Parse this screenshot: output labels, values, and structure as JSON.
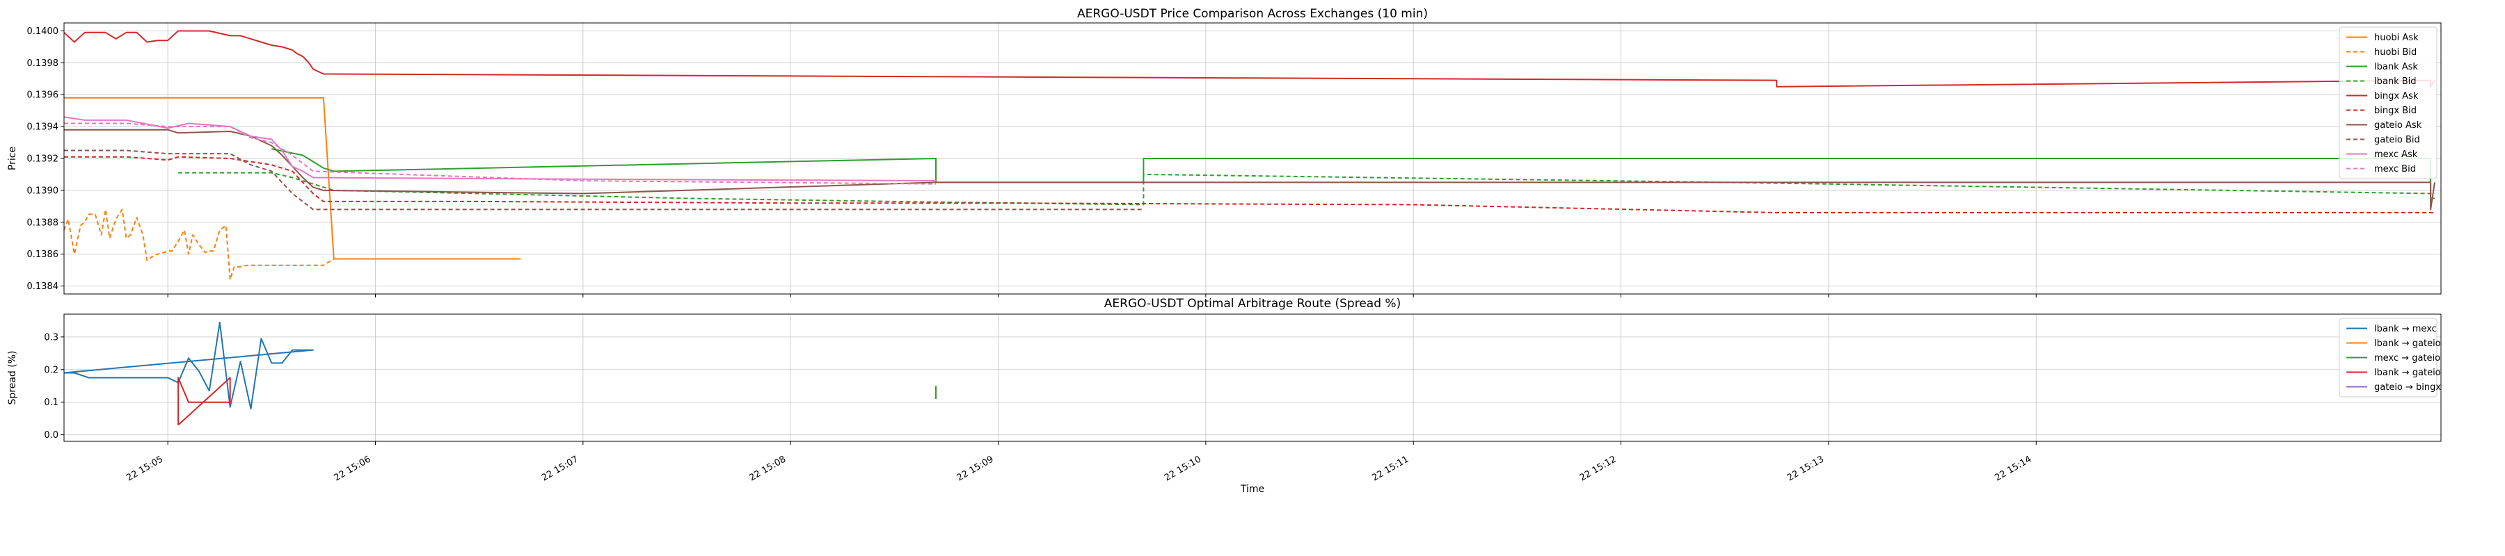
{
  "chart_data": [
    {
      "type": "line",
      "title": "AERGO-USDT Price Comparison Across Exchanges (10 min)",
      "xlabel": "",
      "ylabel": "Price",
      "ylim": [
        0.13835,
        0.14005
      ],
      "yticks": [
        "0.1384",
        "0.1386",
        "0.1388",
        "0.1390",
        "0.1392",
        "0.1394",
        "0.1396",
        "0.1398",
        "0.1400"
      ],
      "ytick_values": [
        0.1384,
        0.1386,
        0.1388,
        0.139,
        0.1392,
        0.1394,
        0.1396,
        0.1398,
        0.14
      ],
      "xlim": [
        4.5,
        15.95
      ],
      "grid": true,
      "legend_position": "top-right",
      "series": [
        {
          "name": "huobi Ask",
          "color": "#ff7f0e",
          "dash": false,
          "x": [
            4.5,
            5.0,
            5.6,
            5.75,
            5.8,
            6.7
          ],
          "y": [
            0.13958,
            0.13958,
            0.13958,
            0.13958,
            0.13857,
            0.13857
          ]
        },
        {
          "name": "huobi Bid",
          "color": "#ff7f0e",
          "dash": true,
          "x": [
            4.5,
            4.52,
            4.55,
            4.58,
            4.6,
            4.62,
            4.65,
            4.68,
            4.7,
            4.72,
            4.75,
            4.78,
            4.8,
            4.82,
            4.85,
            4.88,
            4.9,
            4.92,
            4.95,
            4.98,
            5.0,
            5.02,
            5.05,
            5.08,
            5.1,
            5.12,
            5.15,
            5.18,
            5.2,
            5.22,
            5.25,
            5.28,
            5.3,
            5.32,
            5.35,
            5.38,
            5.4,
            5.45,
            5.5,
            5.55,
            5.6,
            5.65,
            5.7,
            5.75,
            5.8,
            6.7
          ],
          "y": [
            0.13875,
            0.13882,
            0.1386,
            0.13878,
            0.1388,
            0.13885,
            0.13885,
            0.13872,
            0.13888,
            0.1387,
            0.13882,
            0.13888,
            0.1387,
            0.13872,
            0.13883,
            0.13872,
            0.13856,
            0.13858,
            0.1386,
            0.13861,
            0.13862,
            0.13862,
            0.13868,
            0.13875,
            0.1386,
            0.13872,
            0.13866,
            0.13861,
            0.13862,
            0.13862,
            0.13875,
            0.13878,
            0.13844,
            0.13852,
            0.13852,
            0.13853,
            0.13853,
            0.13853,
            0.13853,
            0.13853,
            0.13853,
            0.13853,
            0.13853,
            0.13853,
            0.13857,
            0.13857
          ]
        },
        {
          "name": "lbank Ask",
          "color": "#2ca02c",
          "dash": false,
          "x": [
            5.5,
            5.65,
            5.7,
            5.75,
            5.8,
            8.7,
            8.7,
            9.7,
            9.7,
            15.9,
            15.9,
            15.92
          ],
          "y": [
            0.13926,
            0.13922,
            0.13918,
            0.13914,
            0.13912,
            0.1392,
            0.13905,
            0.13905,
            0.1392,
            0.1392,
            0.13895,
            0.13895
          ]
        },
        {
          "name": "lbank Bid",
          "color": "#2ca02c",
          "dash": true,
          "x": [
            5.05,
            5.5,
            5.6,
            5.7,
            5.8,
            6.5,
            7.5,
            8.5,
            9.7,
            9.7,
            12.5,
            15.9,
            15.92
          ],
          "y": [
            0.13911,
            0.13911,
            0.13908,
            0.13904,
            0.139,
            0.13898,
            0.13895,
            0.13893,
            0.13891,
            0.1391,
            0.13905,
            0.13898,
            0.13898
          ]
        },
        {
          "name": "bingx Ask",
          "color": "#d62728",
          "dash": false,
          "x": [
            4.5,
            4.55,
            4.6,
            4.7,
            4.75,
            4.8,
            4.85,
            4.9,
            4.95,
            5.0,
            5.05,
            5.1,
            5.2,
            5.3,
            5.35,
            5.4,
            5.45,
            5.5,
            5.55,
            5.6,
            5.62,
            5.65,
            5.68,
            5.7,
            5.75,
            12.75,
            12.75,
            15.9,
            15.9,
            15.92
          ],
          "y": [
            0.13999,
            0.13993,
            0.13999,
            0.13999,
            0.13995,
            0.13999,
            0.13999,
            0.13993,
            0.13994,
            0.13994,
            0.14,
            0.14,
            0.14,
            0.13997,
            0.13997,
            0.13995,
            0.13993,
            0.13991,
            0.1399,
            0.13988,
            0.13986,
            0.13984,
            0.1398,
            0.13976,
            0.13973,
            0.13969,
            0.13965,
            0.13969,
            0.13965,
            0.13969
          ]
        },
        {
          "name": "bingx Bid",
          "color": "#d62728",
          "dash": true,
          "x": [
            4.5,
            4.6,
            4.8,
            5.0,
            5.05,
            5.3,
            5.4,
            5.5,
            5.55,
            5.6,
            5.65,
            5.7,
            5.75,
            6.5,
            8.0,
            9.0,
            11.0,
            12.75,
            15.9,
            15.92
          ],
          "y": [
            0.13921,
            0.13921,
            0.13921,
            0.13919,
            0.13921,
            0.1392,
            0.13918,
            0.13916,
            0.13914,
            0.13912,
            0.13905,
            0.13898,
            0.13893,
            0.13893,
            0.13892,
            0.13892,
            0.13891,
            0.13886,
            0.13886,
            0.13886
          ]
        },
        {
          "name": "gateio Ask",
          "color": "#8c564b",
          "dash": false,
          "x": [
            4.5,
            4.6,
            5.0,
            5.05,
            5.3,
            5.4,
            5.5,
            5.55,
            5.6,
            5.65,
            5.7,
            5.75,
            7.0,
            8.7,
            9.7,
            15.9,
            15.9,
            15.92
          ],
          "y": [
            0.13938,
            0.13938,
            0.13938,
            0.13936,
            0.13937,
            0.13934,
            0.13928,
            0.13922,
            0.13915,
            0.13908,
            0.13902,
            0.139,
            0.13898,
            0.13905,
            0.13905,
            0.13905,
            0.13888,
            0.13905
          ]
        },
        {
          "name": "gateio Bid",
          "color": "#8c564b",
          "dash": true,
          "x": [
            4.5,
            4.8,
            5.0,
            5.3,
            5.4,
            5.5,
            5.6,
            5.7,
            5.75,
            8.7,
            9.7
          ],
          "y": [
            0.13925,
            0.13925,
            0.13923,
            0.13923,
            0.13916,
            0.13912,
            0.13898,
            0.13888,
            0.13888,
            0.13888,
            0.13888
          ]
        },
        {
          "name": "mexc Ask",
          "color": "#e377c2",
          "dash": false,
          "x": [
            4.5,
            4.6,
            4.8,
            5.0,
            5.1,
            5.3,
            5.4,
            5.5,
            5.55,
            5.6,
            5.65,
            5.7,
            7.0,
            8.7
          ],
          "y": [
            0.13946,
            0.13944,
            0.13944,
            0.13939,
            0.13942,
            0.1394,
            0.13934,
            0.13932,
            0.13925,
            0.13915,
            0.13912,
            0.13908,
            0.13907,
            0.13906
          ]
        },
        {
          "name": "mexc Bid",
          "color": "#e377c2",
          "dash": true,
          "x": [
            4.5,
            4.8,
            5.0,
            5.3,
            5.4,
            5.5,
            5.6,
            5.7,
            7.0,
            8.7
          ],
          "y": [
            0.13942,
            0.13942,
            0.1394,
            0.1394,
            0.13933,
            0.1393,
            0.13922,
            0.13912,
            0.13906,
            0.13904
          ]
        }
      ]
    },
    {
      "type": "line",
      "title": "AERGO-USDT Optimal Arbitrage Route (Spread %)",
      "xlabel": "Time",
      "ylabel": "Spread (%)",
      "ylim": [
        -0.02,
        0.37
      ],
      "yticks": [
        "0.0",
        "0.1",
        "0.2",
        "0.3"
      ],
      "ytick_values": [
        0.0,
        0.1,
        0.2,
        0.3
      ],
      "xlim": [
        4.5,
        15.95
      ],
      "xticks": [
        "22 15:05",
        "22 15:06",
        "22 15:07",
        "22 15:08",
        "22 15:09",
        "22 15:10",
        "22 15:11",
        "22 15:12",
        "22 15:13",
        "22 15:14"
      ],
      "xtick_values": [
        5,
        6,
        7,
        8,
        9,
        10,
        11,
        12,
        13,
        14
      ],
      "grid": true,
      "legend_position": "top-right",
      "series": [
        {
          "name": "lbank → mexc",
          "color": "#1f77b4",
          "x": [
            4.5,
            4.55,
            4.62,
            4.7,
            4.8,
            4.9,
            4.95,
            5.0,
            5.05,
            5.1,
            5.15,
            5.2,
            5.25,
            5.3,
            5.35,
            5.4,
            5.45,
            5.5,
            5.55,
            5.6,
            5.65,
            5.7,
            4.5
          ],
          "y": [
            0.19,
            0.19,
            0.175,
            0.175,
            0.175,
            0.175,
            0.175,
            0.175,
            0.16,
            0.235,
            0.195,
            0.135,
            0.345,
            0.085,
            0.225,
            0.08,
            0.295,
            0.22,
            0.22,
            0.26,
            0.26,
            0.26,
            0.19
          ]
        },
        {
          "name": "lbank → gateio",
          "color": "#ff7f0e",
          "x": [],
          "y": []
        },
        {
          "name": "mexc → gateio",
          "color": "#2ca02c",
          "x": [
            8.7,
            8.7
          ],
          "y": [
            0.11,
            0.15
          ]
        },
        {
          "name": "lbank → gateio",
          "color": "#d62728",
          "x": [
            5.05,
            5.05,
            5.1,
            5.1,
            5.3,
            5.3,
            5.05
          ],
          "y": [
            0.03,
            0.175,
            0.1,
            0.1,
            0.1,
            0.175,
            0.03
          ]
        },
        {
          "name": "gateio → bingx",
          "color": "#9467bd",
          "x": [],
          "y": []
        }
      ]
    }
  ]
}
